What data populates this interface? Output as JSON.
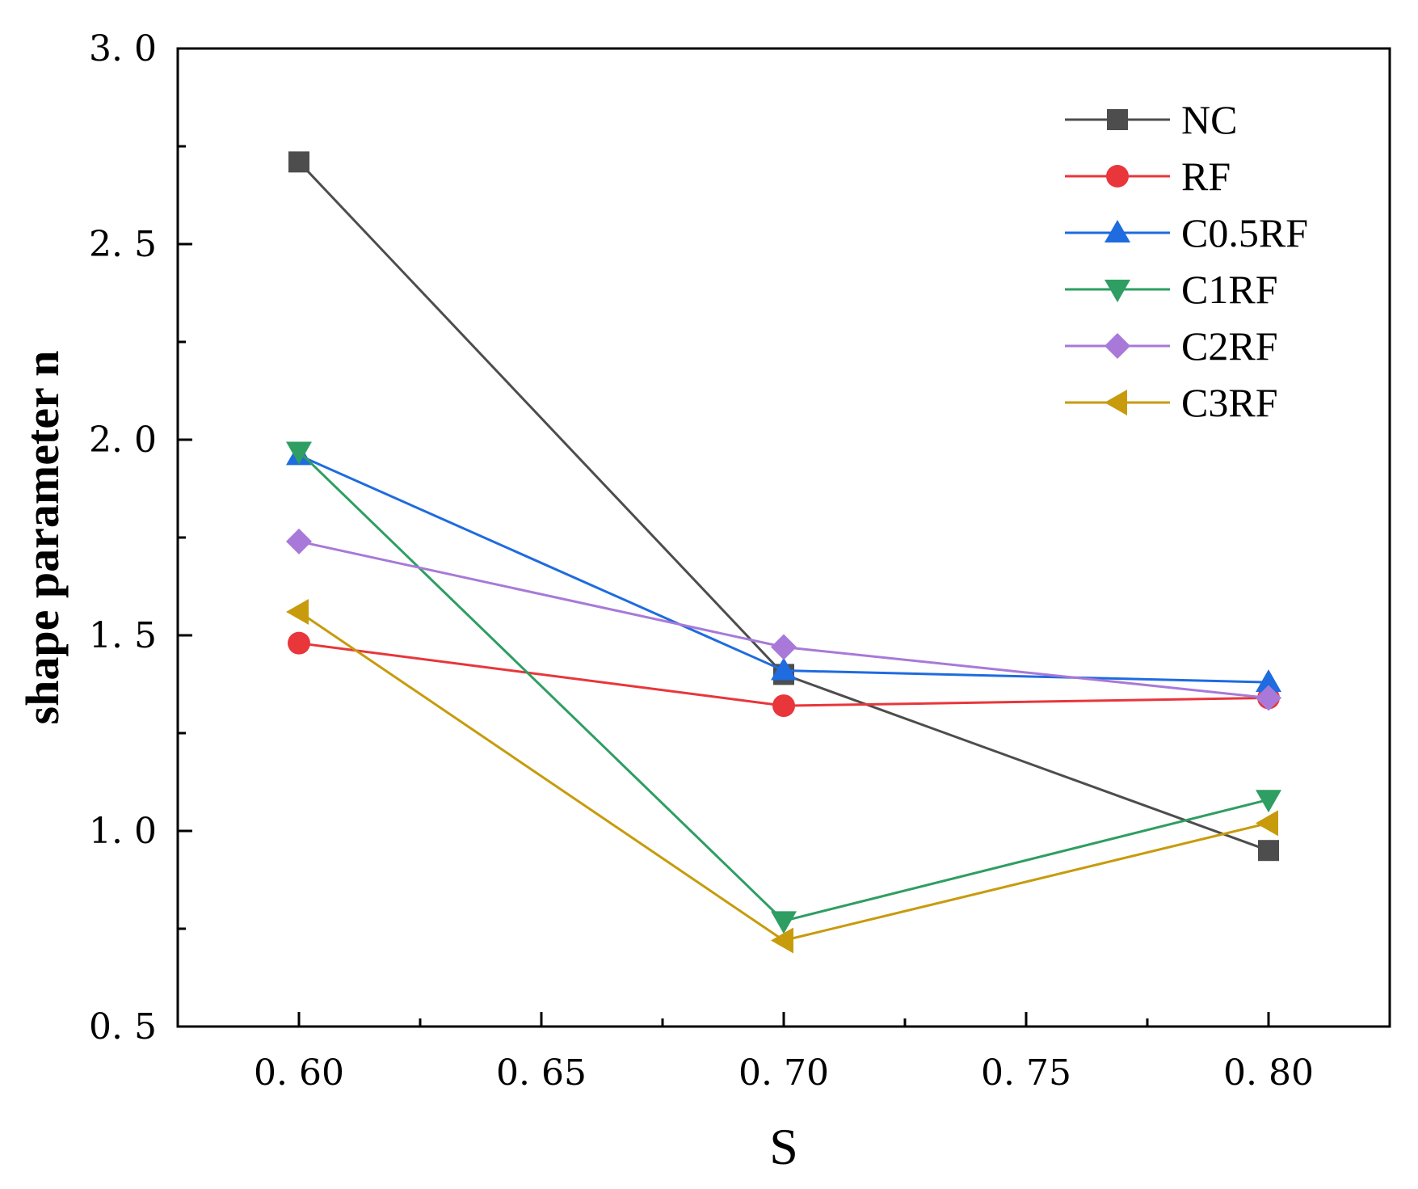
{
  "chart_data": {
    "type": "line",
    "title": "",
    "xlabel": "S",
    "ylabel": "shape parameter n",
    "xlim": [
      0.575,
      0.825
    ],
    "ylim": [
      0.5,
      3.0
    ],
    "xticks": [
      0.6,
      0.65,
      0.7,
      0.75,
      0.8
    ],
    "xtick_labels": [
      "0. 60",
      "0. 65",
      "0. 70",
      "0. 75",
      "0. 80"
    ],
    "xminor_ticks": [
      0.625,
      0.675,
      0.725,
      0.775
    ],
    "yticks": [
      0.5,
      1.0,
      1.5,
      2.0,
      2.5,
      3.0
    ],
    "ytick_labels": [
      "0. 5",
      "1. 0",
      "1. 5",
      "2. 0",
      "2. 5",
      "3. 0"
    ],
    "yminor_ticks": [
      0.75,
      1.25,
      1.75,
      2.25,
      2.75
    ],
    "grid": false,
    "legend_position": "top-right",
    "x": [
      0.6,
      0.7,
      0.8
    ],
    "series": [
      {
        "name": "NC",
        "values": [
          2.71,
          1.4,
          0.95
        ],
        "color": "#4d4d4d",
        "marker": "square"
      },
      {
        "name": "RF",
        "values": [
          1.48,
          1.32,
          1.34
        ],
        "color": "#e8363b",
        "marker": "circle"
      },
      {
        "name": "C0.5RF",
        "values": [
          1.96,
          1.41,
          1.38
        ],
        "color": "#1f6be0",
        "marker": "triangle-up"
      },
      {
        "name": "C1RF",
        "values": [
          1.97,
          0.77,
          1.08
        ],
        "color": "#2e9e62",
        "marker": "triangle-down"
      },
      {
        "name": "C2RF",
        "values": [
          1.74,
          1.47,
          1.34
        ],
        "color": "#a879d8",
        "marker": "diamond"
      },
      {
        "name": "C3RF",
        "values": [
          1.56,
          0.72,
          1.02
        ],
        "color": "#c79b0c",
        "marker": "triangle-left"
      }
    ]
  }
}
